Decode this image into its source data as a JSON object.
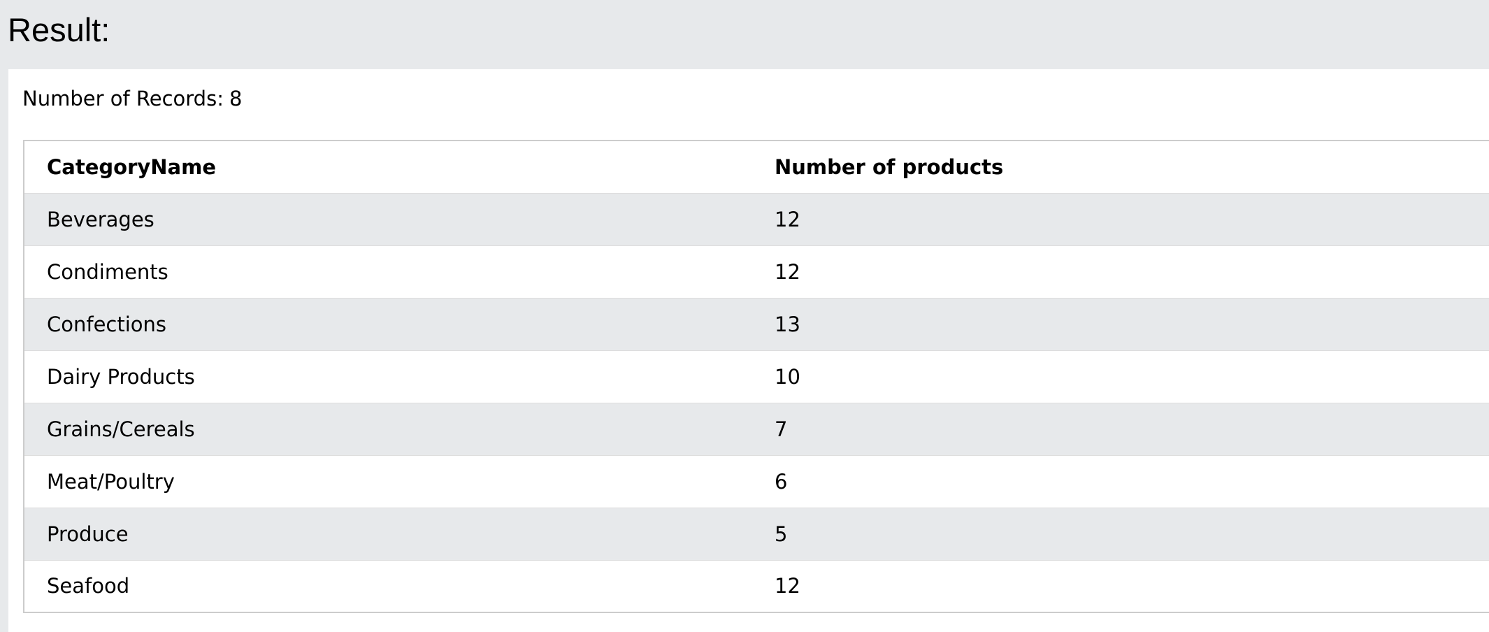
{
  "page": {
    "title": "Result:"
  },
  "result": {
    "records_label": "Number of Records:",
    "records_count": "8",
    "columns": [
      "CategoryName",
      "Number of products"
    ],
    "rows": [
      {
        "category": "Beverages",
        "count": "12"
      },
      {
        "category": "Condiments",
        "count": "12"
      },
      {
        "category": "Confections",
        "count": "13"
      },
      {
        "category": "Dairy Products",
        "count": "10"
      },
      {
        "category": "Grains/Cereals",
        "count": "7"
      },
      {
        "category": "Meat/Poultry",
        "count": "6"
      },
      {
        "category": "Produce",
        "count": "5"
      },
      {
        "category": "Seafood",
        "count": "12"
      }
    ]
  },
  "colors": {
    "page_background": "#e7e9eb",
    "panel_background": "#ffffff",
    "striped_row": "#e7e9eb",
    "table_border": "#cccccc"
  }
}
